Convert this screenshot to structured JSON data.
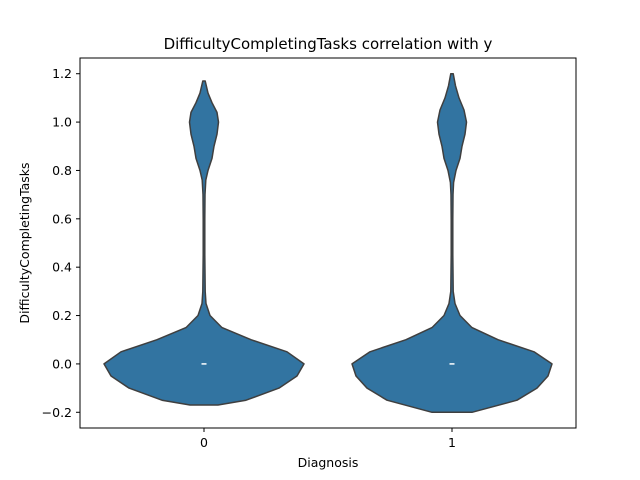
{
  "chart_data": {
    "type": "violin",
    "title": "DifficultyCompletingTasks correlation with y",
    "xlabel": "Diagnosis",
    "ylabel": "DifficultyCompletingTasks",
    "categories": [
      "0",
      "1"
    ],
    "ylim": [
      -0.265,
      1.265
    ],
    "yticks": [
      -0.2,
      0.0,
      0.2,
      0.4,
      0.6,
      0.8,
      1.0,
      1.2
    ],
    "ytick_labels": [
      "−0.2",
      "0.0",
      "0.2",
      "0.4",
      "0.6",
      "0.8",
      "1.0",
      "1.2"
    ],
    "grid": false,
    "fill_color": "#3274a1",
    "edge_color": "#3f3f3f",
    "series": [
      {
        "category": "0",
        "min": -0.17,
        "max": 1.17,
        "median": 0.0,
        "density_profile": [
          [
            -0.17,
            0.14
          ],
          [
            -0.15,
            0.42
          ],
          [
            -0.1,
            0.75
          ],
          [
            -0.05,
            0.93
          ],
          [
            0.0,
            1.0
          ],
          [
            0.05,
            0.83
          ],
          [
            0.1,
            0.47
          ],
          [
            0.15,
            0.18
          ],
          [
            0.2,
            0.06
          ],
          [
            0.25,
            0.02
          ],
          [
            0.3,
            0.012
          ],
          [
            0.45,
            0.008
          ],
          [
            0.6,
            0.008
          ],
          [
            0.7,
            0.01
          ],
          [
            0.76,
            0.018
          ],
          [
            0.8,
            0.04
          ],
          [
            0.85,
            0.08
          ],
          [
            0.9,
            0.1
          ],
          [
            0.95,
            0.13
          ],
          [
            1.0,
            0.145
          ],
          [
            1.04,
            0.13
          ],
          [
            1.08,
            0.08
          ],
          [
            1.12,
            0.04
          ],
          [
            1.17,
            0.012
          ]
        ]
      },
      {
        "category": "1",
        "min": -0.2,
        "max": 1.2,
        "median": 0.0,
        "density_profile": [
          [
            -0.2,
            0.2
          ],
          [
            -0.15,
            0.65
          ],
          [
            -0.1,
            0.85
          ],
          [
            -0.05,
            0.96
          ],
          [
            0.0,
            1.0
          ],
          [
            0.05,
            0.82
          ],
          [
            0.1,
            0.46
          ],
          [
            0.15,
            0.2
          ],
          [
            0.2,
            0.08
          ],
          [
            0.25,
            0.03
          ],
          [
            0.3,
            0.012
          ],
          [
            0.45,
            0.008
          ],
          [
            0.6,
            0.008
          ],
          [
            0.7,
            0.01
          ],
          [
            0.75,
            0.016
          ],
          [
            0.8,
            0.04
          ],
          [
            0.85,
            0.08
          ],
          [
            0.9,
            0.1
          ],
          [
            0.95,
            0.13
          ],
          [
            1.0,
            0.145
          ],
          [
            1.05,
            0.12
          ],
          [
            1.1,
            0.07
          ],
          [
            1.15,
            0.035
          ],
          [
            1.2,
            0.012
          ]
        ]
      }
    ]
  }
}
